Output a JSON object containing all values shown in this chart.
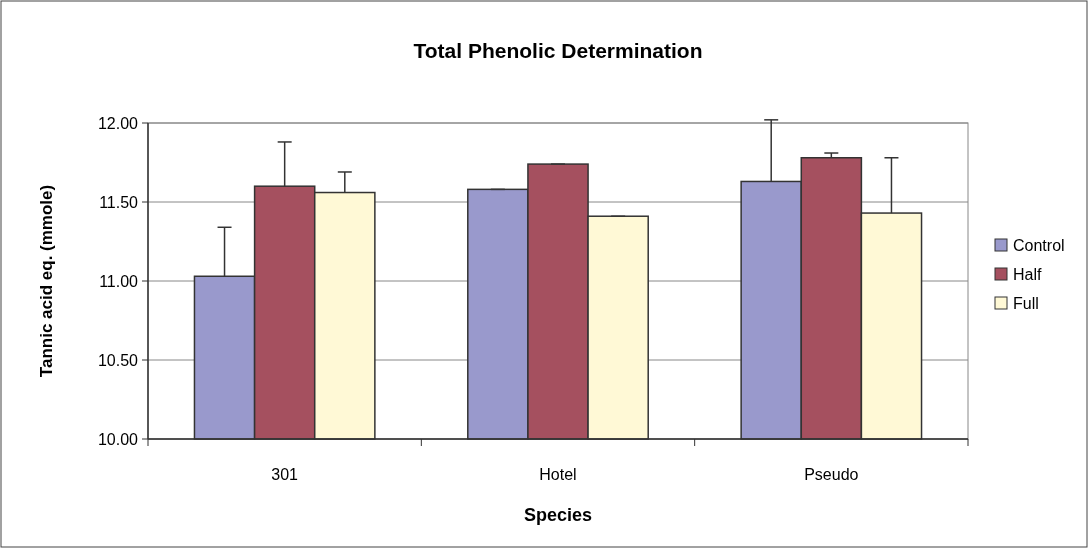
{
  "chart_data": {
    "type": "bar",
    "title": "Total Phenolic Determination",
    "xlabel": "Species",
    "ylabel": "Tannic acid eq. (mmole)",
    "categories": [
      "301",
      "Hotel",
      "Pseudo"
    ],
    "series": [
      {
        "name": "Control",
        "color": "#9999cc",
        "values": [
          11.03,
          11.58,
          11.63
        ],
        "errors": [
          [
            11.03,
            11.34
          ],
          [
            11.58,
            11.58
          ],
          [
            11.63,
            12.02
          ]
        ]
      },
      {
        "name": "Half",
        "color": "#a5505f",
        "values": [
          11.6,
          11.74,
          11.78
        ],
        "errors": [
          [
            11.6,
            11.88
          ],
          [
            11.74,
            11.74
          ],
          [
            11.78,
            11.81
          ]
        ]
      },
      {
        "name": "Full",
        "color": "#fff9d6",
        "values": [
          11.56,
          11.41,
          11.43
        ],
        "errors": [
          [
            11.56,
            11.69
          ],
          [
            11.41,
            11.41
          ],
          [
            11.43,
            11.78
          ]
        ]
      }
    ],
    "ylim": [
      10,
      12
    ],
    "yticks": [
      {
        "value": 10,
        "label": "10.00"
      },
      {
        "value": 10.5,
        "label": "10.50"
      },
      {
        "value": 11,
        "label": "11.00"
      },
      {
        "value": 11.5,
        "label": "11.50"
      },
      {
        "value": 12,
        "label": "12.00"
      }
    ],
    "grid": "y",
    "legend": "right"
  }
}
